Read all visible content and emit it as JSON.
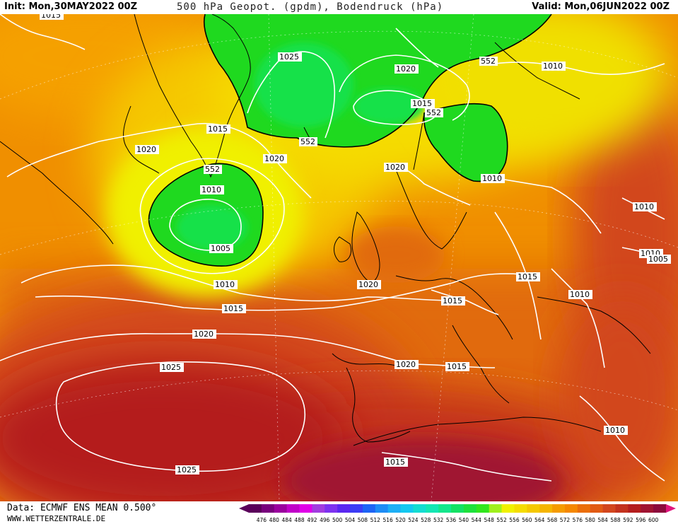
{
  "header": {
    "init_text": "Init: Mon,30MAY2022 00Z",
    "title": "500 hPa Geopot. (gpdm), Bodendruck (hPa)",
    "valid_text": "Valid: Mon,06JUN2022 00Z"
  },
  "footer": {
    "data_source": "Data: ECMWF ENS MEAN 0.500°",
    "website": "WWW.WETTERZENTRALE.DE"
  },
  "colors": {
    "ocean_base": "#f5a000",
    "contour_white": "#ffffff",
    "coastline": "#000000",
    "low_geopotential_green": "#1fd91f",
    "high_geopotential_red": "#b4101e"
  },
  "isobars": {
    "label_values": [
      "1015",
      "1025",
      "1020",
      "552",
      "1010",
      "1015",
      "552",
      "1015",
      "552",
      "1020",
      "1010",
      "1005",
      "1020",
      "552",
      "1010",
      "1010",
      "1010",
      "1020",
      "1015",
      "1015",
      "1010",
      "1015",
      "1020",
      "1025",
      "1020",
      "1015",
      "1010",
      "1025",
      "1015",
      "1010",
      "1005",
      "1020"
    ]
  },
  "scale": {
    "ticks": [
      "476",
      "480",
      "484",
      "488",
      "492",
      "496",
      "500",
      "504",
      "508",
      "512",
      "516",
      "520",
      "524",
      "528",
      "532",
      "536",
      "540",
      "544",
      "548",
      "552",
      "556",
      "560",
      "564",
      "568",
      "572",
      "576",
      "580",
      "584",
      "588",
      "592",
      "596",
      "600"
    ],
    "colors": [
      "#5a005a",
      "#78007d",
      "#9a009e",
      "#c000c8",
      "#e000e8",
      "#a23ce0",
      "#7d32f0",
      "#5a28f0",
      "#3c3cf5",
      "#1e64f5",
      "#1e8cf5",
      "#1eaff5",
      "#14c8f0",
      "#14dcd2",
      "#14e6b4",
      "#14e68c",
      "#14e164",
      "#1ee13c",
      "#32e61e",
      "#a0f01e",
      "#f0f000",
      "#f5dc00",
      "#f5c800",
      "#f5b400",
      "#f59b00",
      "#f58700",
      "#eb6e0a",
      "#e15a14",
      "#d2461e",
      "#c3321e",
      "#b41e1e",
      "#a01432",
      "#8c0a3c"
    ]
  }
}
